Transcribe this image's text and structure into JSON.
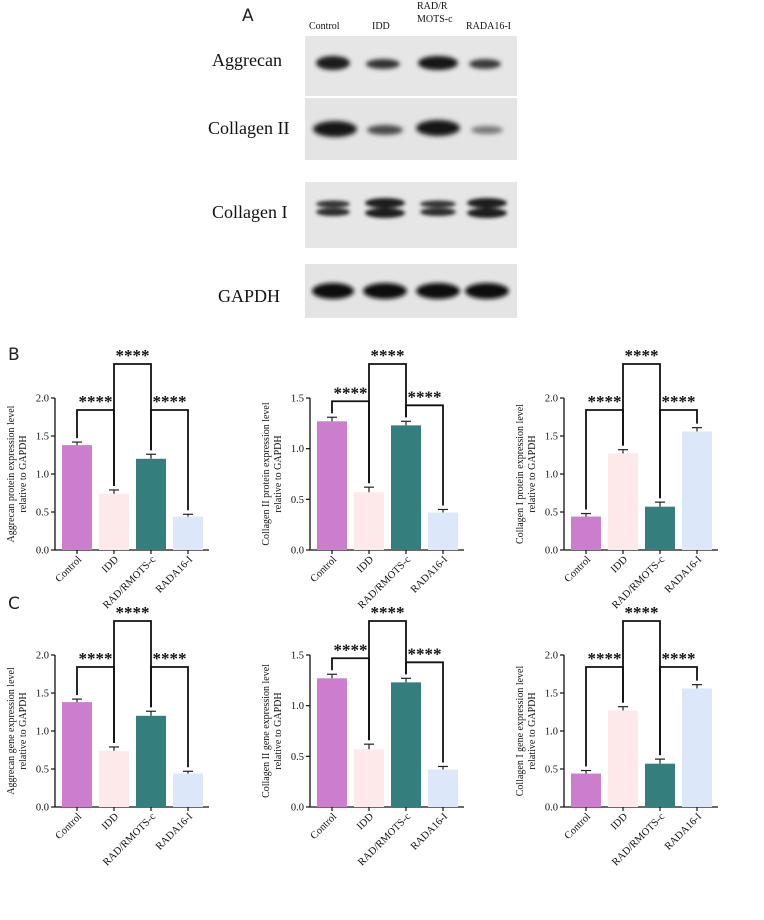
{
  "panel_labels": {
    "a": "A",
    "b": "B",
    "c": "C"
  },
  "western_blot": {
    "lanes": [
      "Control",
      "IDD",
      "RAD/R\nMOTS-c",
      "RADA16-I"
    ],
    "proteins": [
      "Aggrecan",
      "Collagen II",
      "Collagen I",
      "GAPDH"
    ]
  },
  "colors": {
    "Control": "#cd7dcd",
    "IDD": "#fde8ea",
    "RAD/RMOTS-c": "#347e7e",
    "RADA16-I": "#dce8fa",
    "error_bar": "#222222",
    "axis": "#111111"
  },
  "chart_data": [
    {
      "type": "bar",
      "id": "b1",
      "categories": [
        "Control",
        "IDD",
        "RAD/RMOTS-c",
        "RADA16-I"
      ],
      "values": [
        1.38,
        0.74,
        1.2,
        0.44
      ],
      "errors": [
        0.04,
        0.05,
        0.06,
        0.03
      ],
      "ylabel": [
        "Aggrecan protein expression level",
        "relative to GAPDH"
      ],
      "ylim": [
        0,
        2.0
      ],
      "yticks": [
        "0.0",
        "0.5",
        "1.0",
        "1.5",
        "2.0"
      ],
      "yticks_values": [
        0,
        0.5,
        1,
        1.5,
        2
      ],
      "significance": [
        {
          "from": 0,
          "to": 1,
          "label": "****"
        },
        {
          "from": 1,
          "to": 2,
          "label": "****"
        },
        {
          "from": 2,
          "to": 3,
          "label": "****"
        }
      ]
    },
    {
      "type": "bar",
      "id": "b2",
      "categories": [
        "Control",
        "IDD",
        "RAD/RMOTS-c",
        "RADA16-I"
      ],
      "values": [
        1.27,
        0.57,
        1.23,
        0.37
      ],
      "errors": [
        0.04,
        0.05,
        0.04,
        0.03
      ],
      "ylabel": [
        "Collagen II  protein expression level",
        "relative to GAPDH"
      ],
      "ylim": [
        0,
        1.5
      ],
      "yticks": [
        "0.0",
        "0.5",
        "1.0",
        "1.5"
      ],
      "yticks_values": [
        0,
        0.5,
        1,
        1.5
      ],
      "significance": [
        {
          "from": 0,
          "to": 1,
          "label": "****"
        },
        {
          "from": 1,
          "to": 2,
          "label": "****"
        },
        {
          "from": 2,
          "to": 3,
          "label": "****"
        }
      ]
    },
    {
      "type": "bar",
      "id": "b3",
      "categories": [
        "Control",
        "IDD",
        "RAD/RMOTS-c",
        "RADA16-I"
      ],
      "values": [
        0.44,
        1.27,
        0.57,
        1.56
      ],
      "errors": [
        0.04,
        0.05,
        0.06,
        0.05
      ],
      "ylabel": [
        "Collagen I  protein expression level",
        "relative to GAPDH"
      ],
      "ylim": [
        0,
        2.0
      ],
      "yticks": [
        "0.0",
        "0.5",
        "1.0",
        "1.5",
        "2.0"
      ],
      "yticks_values": [
        0,
        0.5,
        1,
        1.5,
        2
      ],
      "significance": [
        {
          "from": 0,
          "to": 1,
          "label": "****"
        },
        {
          "from": 1,
          "to": 2,
          "label": "****"
        },
        {
          "from": 2,
          "to": 3,
          "label": "****"
        }
      ]
    },
    {
      "type": "bar",
      "id": "c1",
      "categories": [
        "Control",
        "IDD",
        "RAD/RMOTS-c",
        "RADA16-I"
      ],
      "values": [
        1.38,
        0.74,
        1.2,
        0.44
      ],
      "errors": [
        0.04,
        0.05,
        0.06,
        0.03
      ],
      "ylabel": [
        "Aggrecan  gene expression level",
        "relative to GAPDH"
      ],
      "ylim": [
        0,
        2.0
      ],
      "yticks": [
        "0.0",
        "0.5",
        "1.0",
        "1.5",
        "2.0"
      ],
      "yticks_values": [
        0,
        0.5,
        1,
        1.5,
        2
      ],
      "significance": [
        {
          "from": 0,
          "to": 1,
          "label": "****"
        },
        {
          "from": 1,
          "to": 2,
          "label": "****"
        },
        {
          "from": 2,
          "to": 3,
          "label": "****"
        }
      ]
    },
    {
      "type": "bar",
      "id": "c2",
      "categories": [
        "Control",
        "IDD",
        "RAD/RMOTS-c",
        "RADA16-I"
      ],
      "values": [
        1.27,
        0.57,
        1.23,
        0.37
      ],
      "errors": [
        0.04,
        0.05,
        0.04,
        0.03
      ],
      "ylabel": [
        "Collagen II  gene expression level",
        "relative to GAPDH"
      ],
      "ylim": [
        0,
        1.5
      ],
      "yticks": [
        "0.0",
        "0.5",
        "1.0",
        "1.5"
      ],
      "yticks_values": [
        0,
        0.5,
        1,
        1.5
      ],
      "significance": [
        {
          "from": 0,
          "to": 1,
          "label": "****"
        },
        {
          "from": 1,
          "to": 2,
          "label": "****"
        },
        {
          "from": 2,
          "to": 3,
          "label": "****"
        }
      ]
    },
    {
      "type": "bar",
      "id": "c3",
      "categories": [
        "Control",
        "IDD",
        "RAD/RMOTS-c",
        "RADA16-I"
      ],
      "values": [
        0.44,
        1.27,
        0.57,
        1.56
      ],
      "errors": [
        0.04,
        0.05,
        0.06,
        0.05
      ],
      "ylabel": [
        "Collagen I  gene expression level",
        "relative to GAPDH"
      ],
      "ylim": [
        0,
        2.0
      ],
      "yticks": [
        "0.0",
        "0.5",
        "1.0",
        "1.5",
        "2.0"
      ],
      "yticks_values": [
        0,
        0.5,
        1,
        1.5,
        2
      ],
      "significance": [
        {
          "from": 0,
          "to": 1,
          "label": "****"
        },
        {
          "from": 1,
          "to": 2,
          "label": "****"
        },
        {
          "from": 2,
          "to": 3,
          "label": "****"
        }
      ]
    }
  ]
}
